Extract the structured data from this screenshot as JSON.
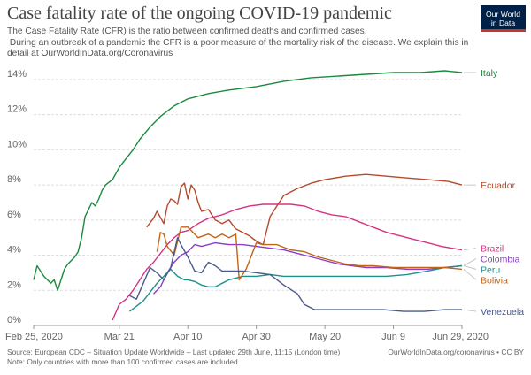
{
  "header": {
    "title": "Case fatality rate of the ongoing COVID-19 pandemic",
    "subtitle_lines": [
      "The Case Fatality Rate (CFR) is the ratio between confirmed deaths and confirmed cases.",
      " During an outbreak of a pandemic the CFR is a poor measure of the mortality risk of the disease. We explain this in",
      "detail at OurWorldInData.org/Coronavirus"
    ]
  },
  "logo": {
    "line1": "Our World",
    "line2": "in Data",
    "bg_color": "#002147",
    "accent_color": "#c0392b"
  },
  "footer": {
    "source": "Source: European CDC – Situation Update Worldwide – Last updated 29th June, 11:15 (London time)",
    "link": "OurWorldInData.org/coronavirus • CC BY",
    "note": "Note: Only countries with more than 100 confirmed cases are included."
  },
  "chart_data": {
    "type": "line",
    "x_start": "2020-02-25",
    "x_end": "2020-06-29",
    "x_ticks": [
      {
        "date": "2020-02-25",
        "label": "Feb 25, 2020"
      },
      {
        "date": "2020-03-21",
        "label": "Mar 21"
      },
      {
        "date": "2020-04-10",
        "label": "Apr 10"
      },
      {
        "date": "2020-04-30",
        "label": "Apr 30"
      },
      {
        "date": "2020-05-20",
        "label": "May 20"
      },
      {
        "date": "2020-06-09",
        "label": "Jun 9"
      },
      {
        "date": "2020-06-29",
        "label": "Jun 29, 2020"
      }
    ],
    "y_ticks": [
      {
        "value": 0,
        "label": "0%"
      },
      {
        "value": 2,
        "label": "2%"
      },
      {
        "value": 4,
        "label": "4%"
      },
      {
        "value": 6,
        "label": "6%"
      },
      {
        "value": 8,
        "label": "8%"
      },
      {
        "value": 10,
        "label": "10%"
      },
      {
        "value": 12,
        "label": "12%"
      },
      {
        "value": 14,
        "label": "14%"
      }
    ],
    "ylim": [
      0,
      14.5
    ],
    "grid": "horizontal-dashed",
    "series": [
      {
        "name": "Italy",
        "color": "#1a8b3e",
        "points": [
          [
            "2020-02-25",
            2.6
          ],
          [
            "2020-02-26",
            3.4
          ],
          [
            "2020-02-28",
            2.8
          ],
          [
            "2020-03-01",
            2.4
          ],
          [
            "2020-03-02",
            2.6
          ],
          [
            "2020-03-03",
            2.0
          ],
          [
            "2020-03-05",
            3.2
          ],
          [
            "2020-03-06",
            3.5
          ],
          [
            "2020-03-08",
            3.9
          ],
          [
            "2020-03-09",
            4.2
          ],
          [
            "2020-03-10",
            5.0
          ],
          [
            "2020-03-11",
            6.2
          ],
          [
            "2020-03-12",
            6.6
          ],
          [
            "2020-03-13",
            7.0
          ],
          [
            "2020-03-14",
            6.8
          ],
          [
            "2020-03-15",
            7.2
          ],
          [
            "2020-03-16",
            7.7
          ],
          [
            "2020-03-17",
            8.0
          ],
          [
            "2020-03-19",
            8.3
          ],
          [
            "2020-03-21",
            9.0
          ],
          [
            "2020-03-23",
            9.5
          ],
          [
            "2020-03-25",
            10.0
          ],
          [
            "2020-03-27",
            10.6
          ],
          [
            "2020-03-30",
            11.3
          ],
          [
            "2020-04-02",
            11.9
          ],
          [
            "2020-04-06",
            12.5
          ],
          [
            "2020-04-10",
            12.9
          ],
          [
            "2020-04-16",
            13.2
          ],
          [
            "2020-04-22",
            13.4
          ],
          [
            "2020-04-30",
            13.6
          ],
          [
            "2020-05-08",
            13.9
          ],
          [
            "2020-05-16",
            14.1
          ],
          [
            "2020-05-24",
            14.2
          ],
          [
            "2020-06-01",
            14.3
          ],
          [
            "2020-06-09",
            14.4
          ],
          [
            "2020-06-17",
            14.4
          ],
          [
            "2020-06-24",
            14.5
          ],
          [
            "2020-06-29",
            14.4
          ]
        ]
      },
      {
        "name": "Ecuador",
        "color": "#b44a2e",
        "points": [
          [
            "2020-03-29",
            5.6
          ],
          [
            "2020-03-31",
            6.1
          ],
          [
            "2020-04-01",
            6.5
          ],
          [
            "2020-04-03",
            5.8
          ],
          [
            "2020-04-04",
            6.8
          ],
          [
            "2020-04-05",
            7.2
          ],
          [
            "2020-04-06",
            7.1
          ],
          [
            "2020-04-07",
            6.9
          ],
          [
            "2020-04-08",
            7.9
          ],
          [
            "2020-04-09",
            8.1
          ],
          [
            "2020-04-10",
            7.2
          ],
          [
            "2020-04-11",
            8.0
          ],
          [
            "2020-04-12",
            7.7
          ],
          [
            "2020-04-13",
            7.0
          ],
          [
            "2020-04-14",
            6.5
          ],
          [
            "2020-04-16",
            6.6
          ],
          [
            "2020-04-18",
            6.0
          ],
          [
            "2020-04-20",
            5.8
          ],
          [
            "2020-04-22",
            6.0
          ],
          [
            "2020-04-24",
            5.5
          ],
          [
            "2020-04-26",
            5.3
          ],
          [
            "2020-04-28",
            5.1
          ],
          [
            "2020-04-30",
            4.8
          ],
          [
            "2020-05-02",
            4.6
          ],
          [
            "2020-05-04",
            6.2
          ],
          [
            "2020-05-06",
            6.8
          ],
          [
            "2020-05-08",
            7.4
          ],
          [
            "2020-05-12",
            7.8
          ],
          [
            "2020-05-16",
            8.1
          ],
          [
            "2020-05-20",
            8.3
          ],
          [
            "2020-05-26",
            8.5
          ],
          [
            "2020-06-01",
            8.6
          ],
          [
            "2020-06-07",
            8.5
          ],
          [
            "2020-06-13",
            8.4
          ],
          [
            "2020-06-19",
            8.3
          ],
          [
            "2020-06-25",
            8.2
          ],
          [
            "2020-06-29",
            8.0
          ]
        ]
      },
      {
        "name": "Brazil",
        "color": "#d63384",
        "points": [
          [
            "2020-03-19",
            0.3
          ],
          [
            "2020-03-21",
            1.2
          ],
          [
            "2020-03-23",
            1.5
          ],
          [
            "2020-03-25",
            2.0
          ],
          [
            "2020-03-27",
            2.6
          ],
          [
            "2020-03-29",
            3.2
          ],
          [
            "2020-03-31",
            3.6
          ],
          [
            "2020-04-02",
            4.1
          ],
          [
            "2020-04-04",
            4.6
          ],
          [
            "2020-04-06",
            5.0
          ],
          [
            "2020-04-08",
            5.3
          ],
          [
            "2020-04-10",
            5.4
          ],
          [
            "2020-04-13",
            5.8
          ],
          [
            "2020-04-16",
            6.1
          ],
          [
            "2020-04-20",
            6.3
          ],
          [
            "2020-04-24",
            6.6
          ],
          [
            "2020-04-28",
            6.8
          ],
          [
            "2020-05-02",
            6.9
          ],
          [
            "2020-05-06",
            6.9
          ],
          [
            "2020-05-10",
            6.9
          ],
          [
            "2020-05-14",
            6.8
          ],
          [
            "2020-05-18",
            6.5
          ],
          [
            "2020-05-22",
            6.3
          ],
          [
            "2020-05-26",
            6.2
          ],
          [
            "2020-05-30",
            5.9
          ],
          [
            "2020-06-03",
            5.6
          ],
          [
            "2020-06-07",
            5.3
          ],
          [
            "2020-06-11",
            5.1
          ],
          [
            "2020-06-15",
            4.9
          ],
          [
            "2020-06-19",
            4.7
          ],
          [
            "2020-06-23",
            4.5
          ],
          [
            "2020-06-29",
            4.3
          ]
        ]
      },
      {
        "name": "Colombia",
        "color": "#8a3ec9",
        "points": [
          [
            "2020-03-31",
            1.8
          ],
          [
            "2020-04-02",
            2.2
          ],
          [
            "2020-04-04",
            3.0
          ],
          [
            "2020-04-06",
            3.6
          ],
          [
            "2020-04-08",
            4.0
          ],
          [
            "2020-04-10",
            4.2
          ],
          [
            "2020-04-12",
            4.6
          ],
          [
            "2020-04-14",
            4.5
          ],
          [
            "2020-04-18",
            4.7
          ],
          [
            "2020-04-22",
            4.6
          ],
          [
            "2020-04-26",
            4.6
          ],
          [
            "2020-04-30",
            4.5
          ],
          [
            "2020-05-04",
            4.4
          ],
          [
            "2020-05-08",
            4.3
          ],
          [
            "2020-05-12",
            4.1
          ],
          [
            "2020-05-16",
            3.9
          ],
          [
            "2020-05-20",
            3.7
          ],
          [
            "2020-05-24",
            3.5
          ],
          [
            "2020-05-28",
            3.4
          ],
          [
            "2020-06-01",
            3.3
          ],
          [
            "2020-06-07",
            3.3
          ],
          [
            "2020-06-13",
            3.2
          ],
          [
            "2020-06-19",
            3.2
          ],
          [
            "2020-06-24",
            3.3
          ],
          [
            "2020-06-29",
            3.4
          ]
        ]
      },
      {
        "name": "Peru",
        "color": "#1f8f8a",
        "points": [
          [
            "2020-03-24",
            0.8
          ],
          [
            "2020-03-26",
            1.1
          ],
          [
            "2020-03-28",
            1.4
          ],
          [
            "2020-03-30",
            1.9
          ],
          [
            "2020-04-01",
            2.4
          ],
          [
            "2020-04-03",
            2.8
          ],
          [
            "2020-04-05",
            3.2
          ],
          [
            "2020-04-07",
            2.8
          ],
          [
            "2020-04-09",
            2.6
          ],
          [
            "2020-04-10",
            2.6
          ],
          [
            "2020-04-12",
            2.5
          ],
          [
            "2020-04-14",
            2.3
          ],
          [
            "2020-04-16",
            2.2
          ],
          [
            "2020-04-18",
            2.2
          ],
          [
            "2020-04-22",
            2.6
          ],
          [
            "2020-04-26",
            2.8
          ],
          [
            "2020-04-30",
            2.8
          ],
          [
            "2020-05-04",
            2.9
          ],
          [
            "2020-05-08",
            2.8
          ],
          [
            "2020-05-12",
            2.8
          ],
          [
            "2020-05-16",
            2.8
          ],
          [
            "2020-05-20",
            2.8
          ],
          [
            "2020-05-26",
            2.8
          ],
          [
            "2020-06-01",
            2.8
          ],
          [
            "2020-06-07",
            2.8
          ],
          [
            "2020-06-13",
            2.9
          ],
          [
            "2020-06-19",
            3.1
          ],
          [
            "2020-06-24",
            3.3
          ],
          [
            "2020-06-29",
            3.4
          ]
        ]
      },
      {
        "name": "Bolivia",
        "color": "#c06417",
        "points": [
          [
            "2020-04-01",
            4.2
          ],
          [
            "2020-04-02",
            5.3
          ],
          [
            "2020-04-03",
            5.2
          ],
          [
            "2020-04-04",
            4.5
          ],
          [
            "2020-04-06",
            4.0
          ],
          [
            "2020-04-08",
            5.6
          ],
          [
            "2020-04-10",
            5.6
          ],
          [
            "2020-04-13",
            5.0
          ],
          [
            "2020-04-16",
            5.2
          ],
          [
            "2020-04-18",
            5.0
          ],
          [
            "2020-04-20",
            5.2
          ],
          [
            "2020-04-22",
            5.0
          ],
          [
            "2020-04-24",
            5.2
          ],
          [
            "2020-04-25",
            2.6
          ],
          [
            "2020-04-27",
            3.2
          ],
          [
            "2020-04-30",
            4.7
          ],
          [
            "2020-05-02",
            4.6
          ],
          [
            "2020-05-06",
            4.6
          ],
          [
            "2020-05-10",
            4.3
          ],
          [
            "2020-05-14",
            4.2
          ],
          [
            "2020-05-18",
            3.9
          ],
          [
            "2020-05-22",
            3.7
          ],
          [
            "2020-05-26",
            3.5
          ],
          [
            "2020-05-30",
            3.4
          ],
          [
            "2020-06-03",
            3.4
          ],
          [
            "2020-06-09",
            3.3
          ],
          [
            "2020-06-14",
            3.3
          ],
          [
            "2020-06-19",
            3.3
          ],
          [
            "2020-06-24",
            3.3
          ],
          [
            "2020-06-29",
            3.2
          ]
        ]
      },
      {
        "name": "Venezuela",
        "color": "#4a5a8a",
        "points": [
          [
            "2020-03-24",
            1.7
          ],
          [
            "2020-03-26",
            1.5
          ],
          [
            "2020-03-28",
            2.4
          ],
          [
            "2020-03-30",
            3.3
          ],
          [
            "2020-04-01",
            3.0
          ],
          [
            "2020-04-03",
            2.6
          ],
          [
            "2020-04-05",
            3.3
          ],
          [
            "2020-04-07",
            5.0
          ],
          [
            "2020-04-08",
            4.6
          ],
          [
            "2020-04-10",
            3.9
          ],
          [
            "2020-04-12",
            3.1
          ],
          [
            "2020-04-14",
            3.0
          ],
          [
            "2020-04-16",
            3.6
          ],
          [
            "2020-04-18",
            3.4
          ],
          [
            "2020-04-20",
            3.1
          ],
          [
            "2020-04-22",
            3.1
          ],
          [
            "2020-04-26",
            3.1
          ],
          [
            "2020-04-30",
            3.0
          ],
          [
            "2020-05-04",
            2.9
          ],
          [
            "2020-05-08",
            2.3
          ],
          [
            "2020-05-12",
            1.8
          ],
          [
            "2020-05-14",
            1.2
          ],
          [
            "2020-05-17",
            0.9
          ],
          [
            "2020-05-22",
            0.9
          ],
          [
            "2020-05-26",
            0.9
          ],
          [
            "2020-05-31",
            0.9
          ],
          [
            "2020-06-06",
            0.9
          ],
          [
            "2020-06-12",
            0.8
          ],
          [
            "2020-06-18",
            0.8
          ],
          [
            "2020-06-24",
            0.9
          ],
          [
            "2020-06-29",
            0.9
          ]
        ]
      }
    ]
  }
}
